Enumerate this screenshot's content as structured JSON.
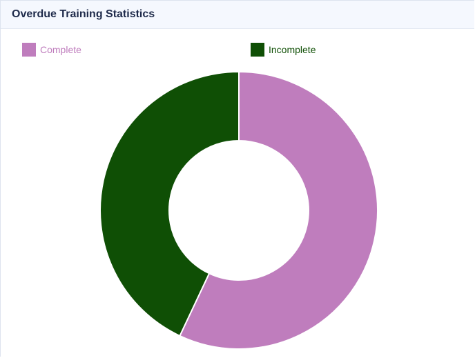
{
  "header": {
    "title": "Overdue Training Statistics"
  },
  "legend": [
    {
      "label": "Complete",
      "color": "#bf7dbd"
    },
    {
      "label": "Incomplete",
      "color": "#0f4f05"
    }
  ],
  "chart_data": {
    "type": "pie",
    "variant": "donut",
    "title": "Overdue Training Statistics",
    "categories": [
      "Complete",
      "Incomplete"
    ],
    "values": [
      57,
      43
    ],
    "colors": [
      "#bf7dbd",
      "#0f4f05"
    ],
    "legend_position": "top"
  }
}
